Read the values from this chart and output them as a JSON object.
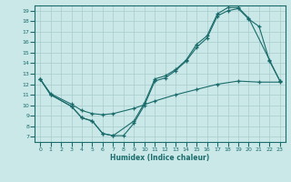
{
  "xlabel": "Humidex (Indice chaleur)",
  "xlim": [
    -0.5,
    23.5
  ],
  "ylim": [
    6.5,
    19.5
  ],
  "xticks": [
    0,
    1,
    2,
    3,
    4,
    5,
    6,
    7,
    8,
    9,
    10,
    11,
    12,
    13,
    14,
    15,
    16,
    17,
    18,
    19,
    20,
    21,
    22,
    23
  ],
  "yticks": [
    7,
    8,
    9,
    10,
    11,
    12,
    13,
    14,
    15,
    16,
    17,
    18,
    19
  ],
  "background_color": "#cbe8e8",
  "grid_color": "#a8cccc",
  "line_color": "#1a6b6b",
  "line1_x": [
    0,
    1,
    3,
    4,
    5,
    6,
    7,
    8,
    9,
    10,
    11,
    12,
    13,
    14,
    15,
    16,
    17,
    18,
    19,
    20,
    21,
    22,
    23
  ],
  "line1_y": [
    12.5,
    11.0,
    9.9,
    8.8,
    8.5,
    7.3,
    7.1,
    7.1,
    8.3,
    10.0,
    12.3,
    12.6,
    13.3,
    14.2,
    15.5,
    16.4,
    18.5,
    19.0,
    19.2,
    18.2,
    17.5,
    14.2,
    12.3
  ],
  "line2_x": [
    0,
    1,
    3,
    4,
    5,
    6,
    7,
    9,
    10,
    11,
    12,
    13,
    14,
    15,
    16,
    17,
    18,
    19,
    20,
    22,
    23
  ],
  "line2_y": [
    12.5,
    11.0,
    9.9,
    8.8,
    8.5,
    7.3,
    7.1,
    8.5,
    10.2,
    12.5,
    12.8,
    13.4,
    14.3,
    15.8,
    16.6,
    18.7,
    19.3,
    19.3,
    18.3,
    14.3,
    12.3
  ],
  "line3_x": [
    0,
    1,
    3,
    4,
    5,
    6,
    7,
    9,
    11,
    13,
    15,
    17,
    19,
    21,
    23
  ],
  "line3_y": [
    12.5,
    11.1,
    10.1,
    9.5,
    9.2,
    9.1,
    9.2,
    9.7,
    10.4,
    11.0,
    11.5,
    12.0,
    12.3,
    12.2,
    12.2
  ]
}
